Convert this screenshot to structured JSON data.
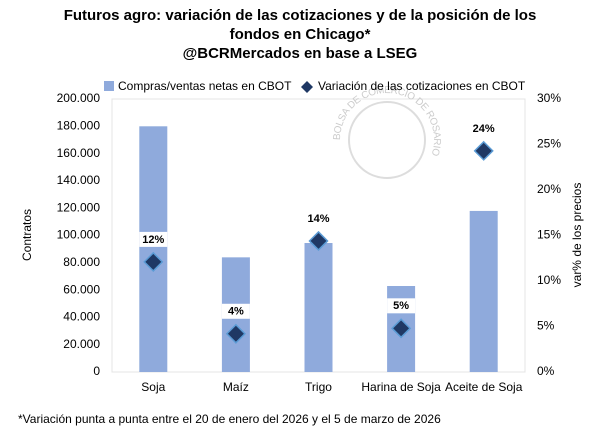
{
  "chart_data": {
    "type": "bar_scatter",
    "title": "Futuros agro: variación de las cotizaciones y de la posición de los fondos en Chicago*",
    "subtitle": "@BCRMercados en base a LSEG",
    "footnote": "*Variación punta a punta entre el 20 de enero del 2026 y el 5 de marzo de 2026",
    "watermark": "BOLSA DE COMERCIO DE ROSARIO",
    "y_label": "Contratos",
    "y2_label": "var% de los precios",
    "categories": [
      "Soja",
      "Maíz",
      "Trigo",
      "Harina de Soja",
      "Aceite de Soja"
    ],
    "series": [
      {
        "name": "Compras/ventas netas en CBOT",
        "color": "#8faadc",
        "values": [
          180000,
          84000,
          94500,
          63000,
          118000
        ]
      },
      {
        "name": "Variación de las cotizaciones en CBOT",
        "color": "#1f3864",
        "axis": "y2",
        "values": [
          12.1,
          4.2,
          14.4,
          4.8,
          24.3
        ],
        "value_labels": [
          "12%",
          "4%",
          "14%",
          "5%",
          "24%"
        ]
      }
    ],
    "ylim": [
      0,
      200000
    ],
    "yticks": [
      {
        "value": 0,
        "label": "0"
      },
      {
        "value": 20000,
        "label": "20.000"
      },
      {
        "value": 40000,
        "label": "40.000"
      },
      {
        "value": 60000,
        "label": "60.000"
      },
      {
        "value": 80000,
        "label": "80.000"
      },
      {
        "value": 100000,
        "label": "100.000"
      },
      {
        "value": 120000,
        "label": "120.000"
      },
      {
        "value": 140000,
        "label": "140.000"
      },
      {
        "value": 160000,
        "label": "160.000"
      },
      {
        "value": 180000,
        "label": "180.000"
      },
      {
        "value": 200000,
        "label": "200.000"
      }
    ],
    "y2lim": [
      0,
      30
    ],
    "y2ticks": [
      {
        "value": 0,
        "label": "0%"
      },
      {
        "value": 5,
        "label": "5%"
      },
      {
        "value": 10,
        "label": "10%"
      },
      {
        "value": 15,
        "label": "15%"
      },
      {
        "value": 20,
        "label": "20%"
      },
      {
        "value": 25,
        "label": "25%"
      },
      {
        "value": 30,
        "label": "30%"
      }
    ],
    "grid": false
  }
}
